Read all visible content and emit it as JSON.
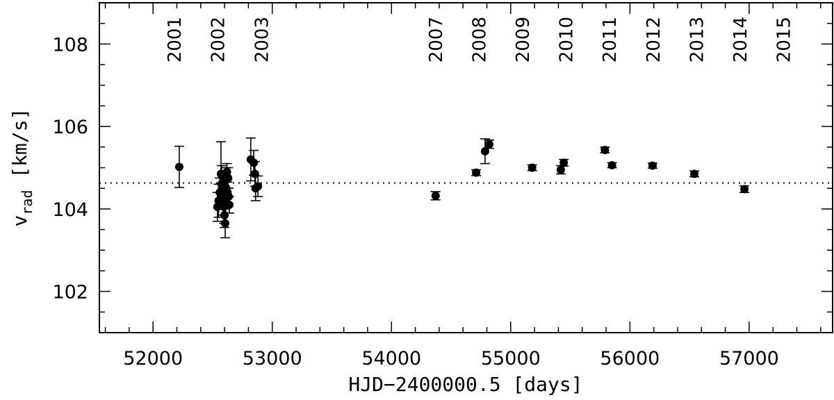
{
  "chart_data": {
    "type": "scatter",
    "xlabel": "HJD−2400000.5  [days]",
    "ylabel_main": "v",
    "ylabel_sub": "rad",
    "ylabel_unit": "[km/s]",
    "xlim": [
      51550,
      57700
    ],
    "ylim": [
      101,
      109
    ],
    "x_ticks": [
      52000,
      53000,
      54000,
      55000,
      56000,
      57000
    ],
    "y_ticks": [
      102,
      104,
      106,
      108
    ],
    "x_minor_step": 200,
    "y_minor_step": 0.5,
    "reference_line": 104.63,
    "year_labels": [
      {
        "label": "2001",
        "x": 52180
      },
      {
        "label": "2002",
        "x": 52545
      },
      {
        "label": "2003",
        "x": 52910
      },
      {
        "label": "2007",
        "x": 54370
      },
      {
        "label": "2008",
        "x": 54735
      },
      {
        "label": "2009",
        "x": 55100
      },
      {
        "label": "2010",
        "x": 55465
      },
      {
        "label": "2011",
        "x": 55830
      },
      {
        "label": "2012",
        "x": 56195
      },
      {
        "label": "2013",
        "x": 56560
      },
      {
        "label": "2014",
        "x": 56925
      },
      {
        "label": "2015",
        "x": 57290
      }
    ],
    "points": [
      {
        "x": 52220,
        "y": 105.02,
        "err": 0.5
      },
      {
        "x": 52540,
        "y": 104.05,
        "err": 0.35
      },
      {
        "x": 52550,
        "y": 104.2,
        "err": 0.4
      },
      {
        "x": 52560,
        "y": 104.4,
        "err": 0.35
      },
      {
        "x": 52570,
        "y": 104.85,
        "err": 0.78
      },
      {
        "x": 52575,
        "y": 104.6,
        "err": 0.45
      },
      {
        "x": 52580,
        "y": 104.5,
        "err": 0.3
      },
      {
        "x": 52585,
        "y": 104.3,
        "err": 0.3
      },
      {
        "x": 52590,
        "y": 104.2,
        "err": 0.35
      },
      {
        "x": 52595,
        "y": 104.05,
        "err": 0.4
      },
      {
        "x": 52600,
        "y": 103.85,
        "err": 0.3
      },
      {
        "x": 52605,
        "y": 103.65,
        "err": 0.35
      },
      {
        "x": 52610,
        "y": 104.7,
        "err": 0.3
      },
      {
        "x": 52615,
        "y": 104.5,
        "err": 0.25
      },
      {
        "x": 52620,
        "y": 104.9,
        "err": 0.2
      },
      {
        "x": 52625,
        "y": 104.4,
        "err": 0.25
      },
      {
        "x": 52630,
        "y": 104.75,
        "err": 0.25
      },
      {
        "x": 52635,
        "y": 104.3,
        "err": 0.2
      },
      {
        "x": 52640,
        "y": 104.1,
        "err": 0.2
      },
      {
        "x": 52820,
        "y": 105.2,
        "err": 0.52
      },
      {
        "x": 52845,
        "y": 105.12,
        "err": 0.3
      },
      {
        "x": 52855,
        "y": 104.85,
        "err": 0.3
      },
      {
        "x": 52860,
        "y": 104.5,
        "err": 0.3
      },
      {
        "x": 52880,
        "y": 104.55,
        "err": 0.25
      },
      {
        "x": 54370,
        "y": 104.32,
        "err": 0.1
      },
      {
        "x": 54710,
        "y": 104.88,
        "err": 0.07
      },
      {
        "x": 54785,
        "y": 105.4,
        "err": 0.3
      },
      {
        "x": 54820,
        "y": 105.57,
        "err": 0.1
      },
      {
        "x": 55180,
        "y": 105.0,
        "err": 0.07
      },
      {
        "x": 55420,
        "y": 104.95,
        "err": 0.1
      },
      {
        "x": 55445,
        "y": 105.12,
        "err": 0.08
      },
      {
        "x": 55790,
        "y": 105.43,
        "err": 0.07
      },
      {
        "x": 55850,
        "y": 105.06,
        "err": 0.06
      },
      {
        "x": 56190,
        "y": 105.05,
        "err": 0.06
      },
      {
        "x": 56540,
        "y": 104.85,
        "err": 0.07
      },
      {
        "x": 56960,
        "y": 104.48,
        "err": 0.08
      }
    ]
  }
}
